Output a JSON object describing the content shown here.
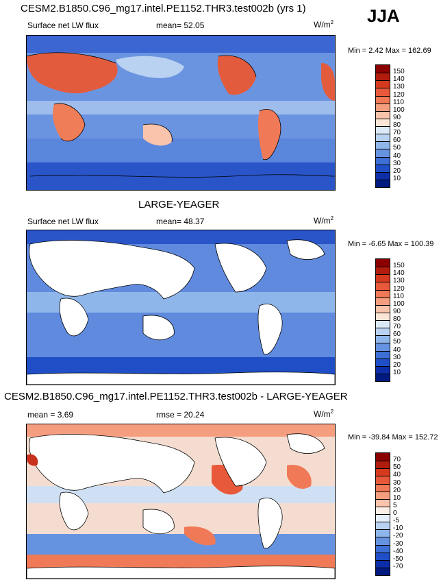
{
  "season": "JJA",
  "panels": [
    {
      "title": "CESM2.B1850.C96_mg17.intel.PE1152.THR3.test002b (yrs 1)",
      "left_label": "Surface net LW flux",
      "center_label": "mean=  52.05",
      "units": "W/m",
      "units_sup": "2",
      "minmax": "Min =   2.42 Max = 162.69",
      "colorbar": {
        "labels": [
          "150",
          "140",
          "130",
          "120",
          "110",
          "100",
          "90",
          "80",
          "70",
          "60",
          "50",
          "40",
          "30",
          "20",
          "10"
        ],
        "colors": [
          "#8b0000",
          "#b21c0e",
          "#d53a1e",
          "#e8583a",
          "#f07a58",
          "#f59e7f",
          "#f9c4ab",
          "#fbe5d6",
          "#dce9f7",
          "#b9d2f1",
          "#8fb6ea",
          "#6693e0",
          "#3e6fd6",
          "#1f4ec6",
          "#0d2ea8",
          "#001a80"
        ]
      }
    },
    {
      "title": "LARGE-YEAGER",
      "left_label": "Surface net LW flux",
      "center_label": "mean=  48.37",
      "units": "W/m",
      "units_sup": "2",
      "minmax": "Min =  -6.65 Max = 100.39",
      "colorbar": {
        "labels": [
          "150",
          "140",
          "130",
          "120",
          "110",
          "100",
          "90",
          "80",
          "70",
          "60",
          "50",
          "40",
          "30",
          "20",
          "10"
        ],
        "colors": [
          "#8b0000",
          "#b21c0e",
          "#d53a1e",
          "#e8583a",
          "#f07a58",
          "#f59e7f",
          "#f9c4ab",
          "#fbe5d6",
          "#dce9f7",
          "#b9d2f1",
          "#8fb6ea",
          "#6693e0",
          "#3e6fd6",
          "#1f4ec6",
          "#0d2ea8",
          "#001a80"
        ]
      }
    },
    {
      "title": "CESM2.B1850.C96_mg17.intel.PE1152.THR3.test002b - LARGE-YEAGER",
      "left_label": "mean =   3.69",
      "center_label": "rmse =  20.24",
      "units": "W/m",
      "units_sup": "2",
      "minmax": "Min = -39.84 Max = 152.72",
      "colorbar": {
        "labels": [
          "70",
          "50",
          "40",
          "30",
          "20",
          "10",
          "5",
          "0",
          "-5",
          "-10",
          "-20",
          "-30",
          "-40",
          "-50",
          "-70"
        ],
        "colors": [
          "#8b0000",
          "#b21c0e",
          "#d53a1e",
          "#e8583a",
          "#f07a58",
          "#f59e7f",
          "#f9c4ab",
          "#fbeee6",
          "#e6eefa",
          "#b9d2f1",
          "#8fb6ea",
          "#6693e0",
          "#3e6fd6",
          "#1f4ec6",
          "#0d2ea8",
          "#001a80"
        ]
      }
    }
  ]
}
